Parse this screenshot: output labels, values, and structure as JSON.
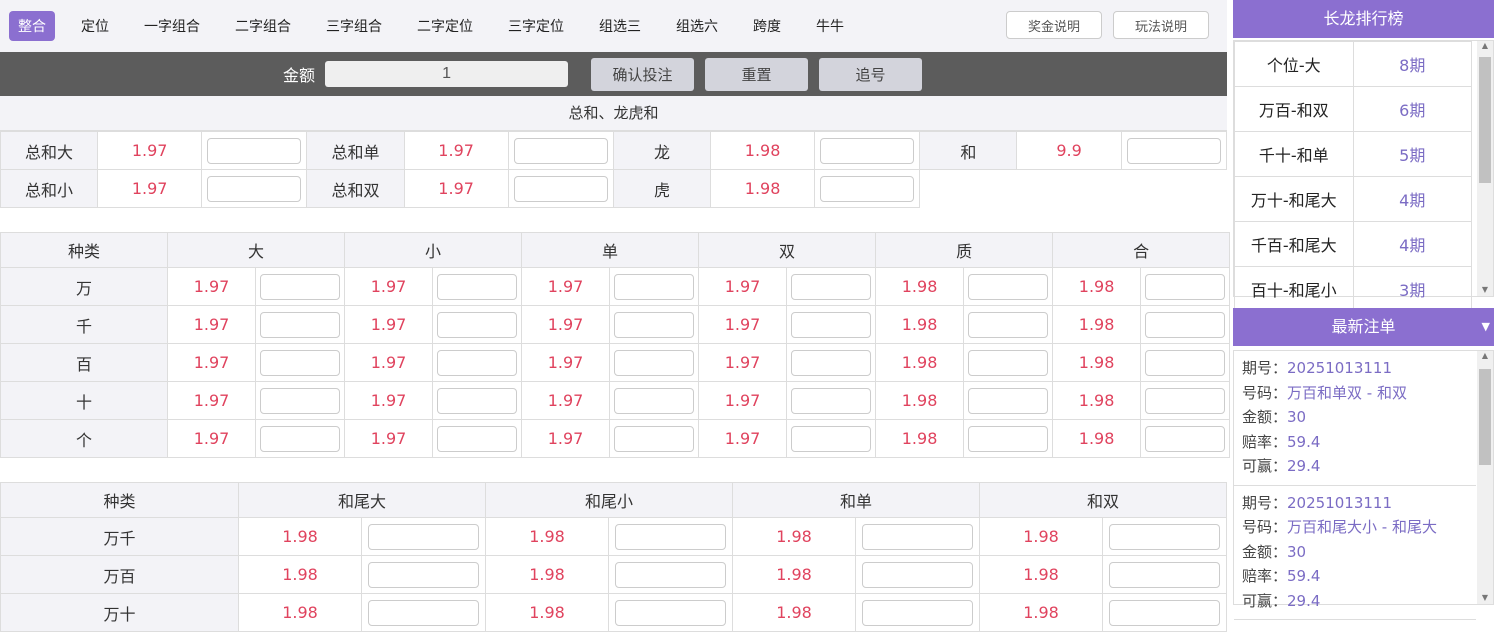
{
  "nav": {
    "tabs": [
      "整合",
      "定位",
      "一字组合",
      "二字组合",
      "三字组合",
      "二字定位",
      "三字定位",
      "组选三",
      "组选六",
      "跨度",
      "牛牛"
    ],
    "active": 0,
    "prize_btn": "奖金说明",
    "rules_btn": "玩法说明"
  },
  "bet_bar": {
    "amount_label": "金额",
    "amount_value": "1",
    "confirm": "确认投注",
    "reset": "重置",
    "chase": "追号"
  },
  "section1": {
    "title": "总和、龙虎和",
    "rows": [
      [
        {
          "label": "总和大",
          "odds": "1.97"
        },
        {
          "label": "总和单",
          "odds": "1.97"
        },
        {
          "label": "龙",
          "odds": "1.98"
        },
        {
          "label": "和",
          "odds": "9.9"
        }
      ],
      [
        {
          "label": "总和小",
          "odds": "1.97"
        },
        {
          "label": "总和双",
          "odds": "1.97"
        },
        {
          "label": "虎",
          "odds": "1.98"
        }
      ]
    ]
  },
  "section2": {
    "headers": [
      "种类",
      "大",
      "小",
      "单",
      "双",
      "质",
      "合"
    ],
    "rows": [
      {
        "label": "万",
        "odds": [
          "1.97",
          "1.97",
          "1.97",
          "1.97",
          "1.98",
          "1.98"
        ]
      },
      {
        "label": "千",
        "odds": [
          "1.97",
          "1.97",
          "1.97",
          "1.97",
          "1.98",
          "1.98"
        ]
      },
      {
        "label": "百",
        "odds": [
          "1.97",
          "1.97",
          "1.97",
          "1.97",
          "1.98",
          "1.98"
        ]
      },
      {
        "label": "十",
        "odds": [
          "1.97",
          "1.97",
          "1.97",
          "1.97",
          "1.98",
          "1.98"
        ]
      },
      {
        "label": "个",
        "odds": [
          "1.97",
          "1.97",
          "1.97",
          "1.97",
          "1.98",
          "1.98"
        ]
      }
    ]
  },
  "section3": {
    "headers": [
      "种类",
      "和尾大",
      "和尾小",
      "和单",
      "和双"
    ],
    "rows": [
      {
        "label": "万千",
        "odds": [
          "1.98",
          "1.98",
          "1.98",
          "1.98"
        ]
      },
      {
        "label": "万百",
        "odds": [
          "1.98",
          "1.98",
          "1.98",
          "1.98"
        ]
      },
      {
        "label": "万十",
        "odds": [
          "1.98",
          "1.98",
          "1.98",
          "1.98"
        ]
      }
    ]
  },
  "sidebar": {
    "ranking_title": "长龙排行榜",
    "ranking": [
      {
        "name": "个位-大",
        "count": "8期"
      },
      {
        "name": "万百-和双",
        "count": "6期"
      },
      {
        "name": "千十-和单",
        "count": "5期"
      },
      {
        "name": "万十-和尾大",
        "count": "4期"
      },
      {
        "name": "千百-和尾大",
        "count": "4期"
      },
      {
        "name": "百十-和尾小",
        "count": "3期"
      }
    ],
    "orders_title": "最新注单",
    "labels": {
      "issue": "期号：",
      "number": "号码：",
      "amount": "金额：",
      "odds": "赔率：",
      "win": "可赢："
    },
    "orders": [
      {
        "issue": "20251013111",
        "number": "万百和单双 - 和双",
        "amount": "30",
        "odds": "59.4",
        "win": "29.4"
      },
      {
        "issue": "20251013111",
        "number": "万百和尾大小 - 和尾大",
        "amount": "30",
        "odds": "59.4",
        "win": "29.4"
      }
    ]
  },
  "colors": {
    "accent": "#8b6fd0",
    "odds": "#e0435e",
    "bar": "#5c5c5c"
  }
}
